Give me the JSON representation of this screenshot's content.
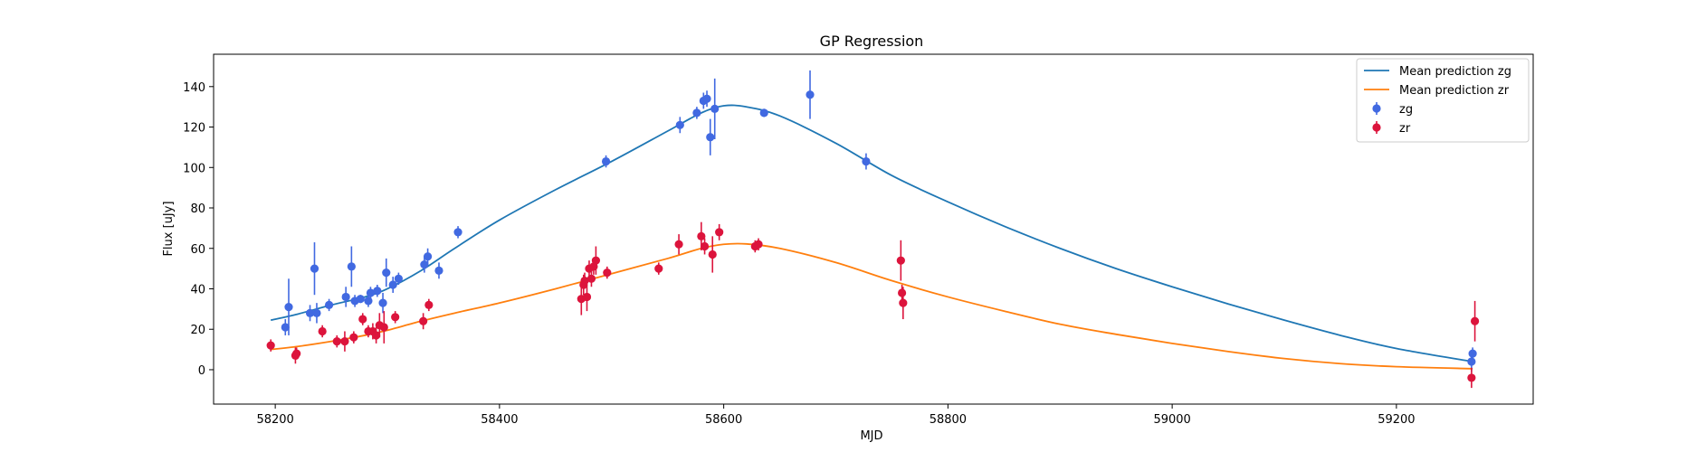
{
  "chart_data": {
    "type": "scatter",
    "title": "GP Regression",
    "xlabel": "MJD",
    "ylabel": "Flux [uJy]",
    "xlim": [
      58145,
      59322
    ],
    "ylim": [
      -17,
      156
    ],
    "xticks": [
      58200,
      58400,
      58600,
      58800,
      59000,
      59200
    ],
    "yticks": [
      0,
      20,
      40,
      60,
      80,
      100,
      120,
      140
    ],
    "grid": false,
    "legend_position": "top-right",
    "series": [
      {
        "name": "Mean prediction zg",
        "kind": "line",
        "color": "#1f77b4",
        "x": [
          58196,
          58220,
          58250,
          58280,
          58300,
          58330,
          58360,
          58400,
          58450,
          58500,
          58550,
          58580,
          58600,
          58620,
          58650,
          58700,
          58750,
          58800,
          58850,
          58900,
          58950,
          59000,
          59050,
          59100,
          59150,
          59200,
          59268
        ],
        "y": [
          24.5,
          27.5,
          32,
          36,
          40,
          49,
          60,
          74,
          89,
          103,
          118,
          127,
          130.5,
          130,
          125.5,
          112,
          96,
          83,
          71,
          60,
          50,
          41,
          32.5,
          24.5,
          17,
          10.5,
          4
        ]
      },
      {
        "name": "Mean prediction zr",
        "kind": "line",
        "color": "#ff7f0e",
        "x": [
          58196,
          58220,
          58250,
          58280,
          58300,
          58330,
          58360,
          58400,
          58450,
          58500,
          58550,
          58580,
          58600,
          58620,
          58650,
          58700,
          58750,
          58800,
          58850,
          58900,
          58950,
          59000,
          59050,
          59100,
          59150,
          59200,
          59268
        ],
        "y": [
          10,
          11.5,
          14,
          17,
          19.5,
          24,
          28,
          33,
          40,
          47.5,
          55,
          60,
          62,
          62.2,
          60,
          53,
          44,
          36,
          29,
          22.5,
          17.5,
          13,
          9,
          5.5,
          3,
          1.5,
          0.5
        ]
      },
      {
        "name": "zg",
        "kind": "errorbar",
        "color": "#4169e1",
        "points": [
          {
            "x": 58209,
            "y": 21,
            "err": 4
          },
          {
            "x": 58212,
            "y": 31,
            "err": 14
          },
          {
            "x": 58231,
            "y": 28,
            "err": 4
          },
          {
            "x": 58235,
            "y": 50,
            "err": 13
          },
          {
            "x": 58237,
            "y": 28,
            "err": 5
          },
          {
            "x": 58248,
            "y": 32,
            "err": 3
          },
          {
            "x": 58263,
            "y": 36,
            "err": 5
          },
          {
            "x": 58268,
            "y": 51,
            "err": 10
          },
          {
            "x": 58271,
            "y": 34,
            "err": 3
          },
          {
            "x": 58276,
            "y": 35,
            "err": 2
          },
          {
            "x": 58283,
            "y": 34,
            "err": 3
          },
          {
            "x": 58285,
            "y": 38,
            "err": 3
          },
          {
            "x": 58291,
            "y": 39,
            "err": 3
          },
          {
            "x": 58296,
            "y": 33,
            "err": 5
          },
          {
            "x": 58299,
            "y": 48,
            "err": 7
          },
          {
            "x": 58305,
            "y": 42,
            "err": 4
          },
          {
            "x": 58310,
            "y": 45,
            "err": 3
          },
          {
            "x": 58333,
            "y": 52,
            "err": 4
          },
          {
            "x": 58336,
            "y": 56,
            "err": 4
          },
          {
            "x": 58346,
            "y": 49,
            "err": 4
          },
          {
            "x": 58363,
            "y": 68,
            "err": 3
          },
          {
            "x": 58495,
            "y": 103,
            "err": 3
          },
          {
            "x": 58561,
            "y": 121,
            "err": 4
          },
          {
            "x": 58576,
            "y": 127,
            "err": 3
          },
          {
            "x": 58582,
            "y": 133,
            "err": 4
          },
          {
            "x": 58585,
            "y": 134,
            "err": 4
          },
          {
            "x": 58588,
            "y": 115,
            "err": 9
          },
          {
            "x": 58592,
            "y": 129,
            "err": 15
          },
          {
            "x": 58636,
            "y": 127,
            "err": 2
          },
          {
            "x": 58677,
            "y": 136,
            "err": 12
          },
          {
            "x": 58727,
            "y": 103,
            "err": 4
          },
          {
            "x": 59267,
            "y": 4,
            "err": 5
          },
          {
            "x": 59268,
            "y": 8,
            "err": 3
          }
        ]
      },
      {
        "name": "zr",
        "kind": "errorbar",
        "color": "#dc143c",
        "points": [
          {
            "x": 58196,
            "y": 12,
            "err": 3
          },
          {
            "x": 58218,
            "y": 7,
            "err": 4
          },
          {
            "x": 58219,
            "y": 8,
            "err": 3
          },
          {
            "x": 58242,
            "y": 19,
            "err": 3
          },
          {
            "x": 58255,
            "y": 14,
            "err": 3
          },
          {
            "x": 58262,
            "y": 14,
            "err": 5
          },
          {
            "x": 58270,
            "y": 16,
            "err": 3
          },
          {
            "x": 58278,
            "y": 25,
            "err": 3
          },
          {
            "x": 58283,
            "y": 19,
            "err": 3
          },
          {
            "x": 58287,
            "y": 19,
            "err": 4
          },
          {
            "x": 58290,
            "y": 17,
            "err": 4
          },
          {
            "x": 58293,
            "y": 22,
            "err": 6
          },
          {
            "x": 58297,
            "y": 21,
            "err": 8
          },
          {
            "x": 58307,
            "y": 26,
            "err": 3
          },
          {
            "x": 58332,
            "y": 24,
            "err": 4
          },
          {
            "x": 58337,
            "y": 32,
            "err": 3
          },
          {
            "x": 58473,
            "y": 35,
            "err": 8
          },
          {
            "x": 58475,
            "y": 42,
            "err": 5
          },
          {
            "x": 58476,
            "y": 44,
            "err": 4
          },
          {
            "x": 58478,
            "y": 36,
            "err": 7
          },
          {
            "x": 58480,
            "y": 50,
            "err": 4
          },
          {
            "x": 58482,
            "y": 45,
            "err": 4
          },
          {
            "x": 58484,
            "y": 51,
            "err": 4
          },
          {
            "x": 58486,
            "y": 54,
            "err": 7
          },
          {
            "x": 58496,
            "y": 48,
            "err": 3
          },
          {
            "x": 58542,
            "y": 50,
            "err": 3
          },
          {
            "x": 58560,
            "y": 62,
            "err": 5
          },
          {
            "x": 58580,
            "y": 66,
            "err": 7
          },
          {
            "x": 58583,
            "y": 61,
            "err": 4
          },
          {
            "x": 58590,
            "y": 57,
            "err": 9
          },
          {
            "x": 58596,
            "y": 68,
            "err": 4
          },
          {
            "x": 58628,
            "y": 61,
            "err": 3
          },
          {
            "x": 58631,
            "y": 62,
            "err": 3
          },
          {
            "x": 58758,
            "y": 54,
            "err": 10
          },
          {
            "x": 58759,
            "y": 38,
            "err": 4
          },
          {
            "x": 58760,
            "y": 33,
            "err": 8
          },
          {
            "x": 59267,
            "y": -4,
            "err": 5
          },
          {
            "x": 59270,
            "y": 24,
            "err": 10
          }
        ]
      }
    ]
  }
}
